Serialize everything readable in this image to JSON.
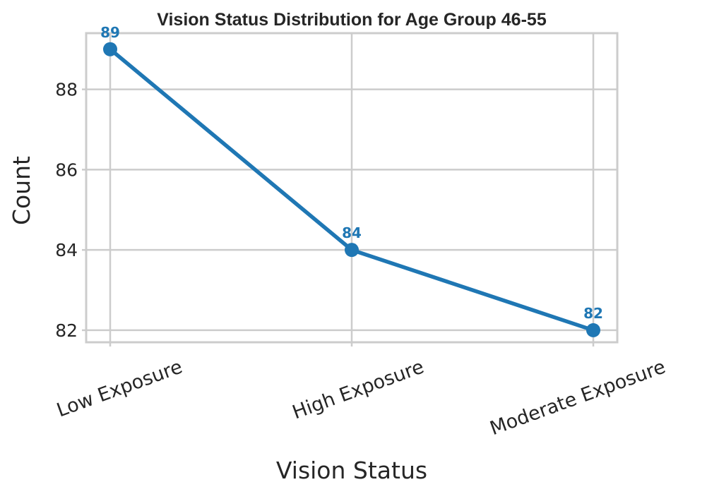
{
  "chart_data": {
    "type": "line",
    "title": "Vision Status Distribution for Age Group 46-55",
    "xlabel": "Vision Status",
    "ylabel": "Count",
    "categories": [
      "Low Exposure",
      "High Exposure",
      "Moderate Exposure"
    ],
    "series": [
      {
        "values": [
          89,
          84,
          82
        ],
        "color": "#1f77b4"
      }
    ],
    "data_labels": [
      "89",
      "84",
      "82"
    ],
    "ylim": [
      81.7,
      89.4
    ],
    "yticks": [
      82,
      84,
      86,
      88
    ],
    "ytick_labels": [
      "82",
      "84",
      "86",
      "88"
    ],
    "grid": true,
    "legend": "none"
  }
}
